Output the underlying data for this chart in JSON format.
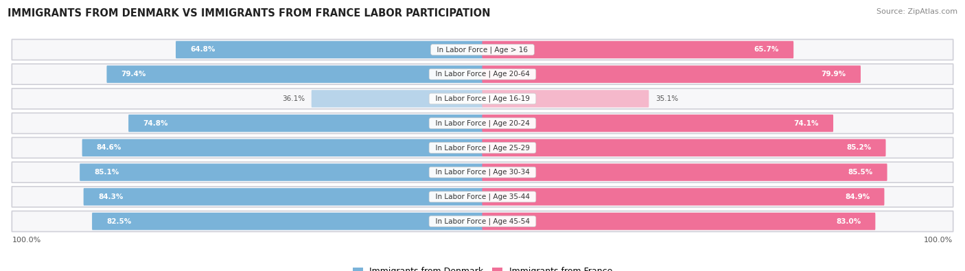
{
  "title": "IMMIGRANTS FROM DENMARK VS IMMIGRANTS FROM FRANCE LABOR PARTICIPATION",
  "source": "Source: ZipAtlas.com",
  "categories": [
    "In Labor Force | Age > 16",
    "In Labor Force | Age 20-64",
    "In Labor Force | Age 16-19",
    "In Labor Force | Age 20-24",
    "In Labor Force | Age 25-29",
    "In Labor Force | Age 30-34",
    "In Labor Force | Age 35-44",
    "In Labor Force | Age 45-54"
  ],
  "denmark_values": [
    64.8,
    79.4,
    36.1,
    74.8,
    84.6,
    85.1,
    84.3,
    82.5
  ],
  "france_values": [
    65.7,
    79.9,
    35.1,
    74.1,
    85.2,
    85.5,
    84.9,
    83.0
  ],
  "denmark_color": "#7ab3d9",
  "denmark_color_light": "#b8d4ea",
  "france_color": "#f07098",
  "france_color_light": "#f5b8cb",
  "row_bg_color": "#e8e8ec",
  "row_inner_bg": "#f7f7f9",
  "legend_denmark": "Immigrants from Denmark",
  "legend_france": "Immigrants from France",
  "max_value": 100.0,
  "background_color": "#ffffff",
  "label_fontsize": 7.5,
  "value_fontsize": 7.5,
  "title_fontsize": 10.5
}
